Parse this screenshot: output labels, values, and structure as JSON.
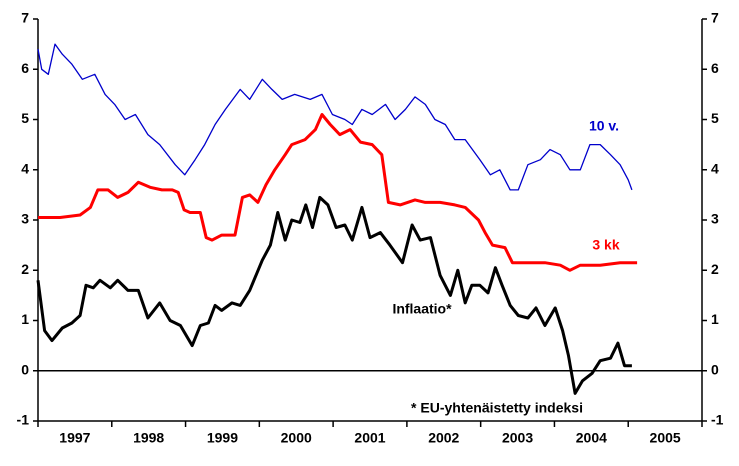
{
  "chart_data": {
    "type": "line",
    "xlim": [
      1997,
      2006
    ],
    "xticks": [
      1997,
      1998,
      1999,
      2000,
      2001,
      2002,
      2003,
      2004,
      2005
    ],
    "ylim": [
      -1,
      7
    ],
    "yticks": [
      -1,
      0,
      1,
      2,
      3,
      4,
      5,
      6,
      7
    ],
    "y2lim": [
      -1,
      7
    ],
    "y2ticks": [
      -1,
      0,
      1,
      2,
      3,
      4,
      5,
      6,
      7
    ],
    "annotations": [
      "* EU-yhtenäistetty indeksi"
    ],
    "series": [
      {
        "name": "10 v.",
        "color": "#0000cc",
        "x": [
          1997.0,
          1997.05,
          1997.14,
          1997.23,
          1997.33,
          1997.46,
          1997.6,
          1997.77,
          1997.91,
          1998.04,
          1998.18,
          1998.32,
          1998.49,
          1998.65,
          1998.86,
          1998.99,
          1999.13,
          1999.26,
          1999.4,
          1999.54,
          1999.74,
          1999.87,
          2000.04,
          2000.17,
          2000.31,
          2000.48,
          2000.69,
          2000.85,
          2000.99,
          2001.16,
          2001.26,
          2001.39,
          2001.53,
          2001.71,
          2001.84,
          2001.98,
          2002.11,
          2002.25,
          2002.38,
          2002.52,
          2002.65,
          2002.79,
          2002.99,
          2003.13,
          2003.26,
          2003.4,
          2003.51,
          2003.64,
          2003.81,
          2003.94,
          2004.08,
          2004.21,
          2004.35,
          2004.48,
          2004.62,
          2004.76,
          2004.89,
          2005.0,
          2005.05
        ],
        "values": [
          6.4,
          6.0,
          5.9,
          6.5,
          6.3,
          6.1,
          5.8,
          5.9,
          5.5,
          5.3,
          5.0,
          5.1,
          4.7,
          4.5,
          4.1,
          3.9,
          4.2,
          4.5,
          4.9,
          5.2,
          5.6,
          5.4,
          5.8,
          5.6,
          5.4,
          5.5,
          5.4,
          5.5,
          5.1,
          5.0,
          4.9,
          5.2,
          5.1,
          5.3,
          5.0,
          5.2,
          5.45,
          5.3,
          5.0,
          4.9,
          4.6,
          4.6,
          4.2,
          3.9,
          4.0,
          3.6,
          3.6,
          4.1,
          4.2,
          4.4,
          4.3,
          4.0,
          4.0,
          4.5,
          4.5,
          4.3,
          4.1,
          3.8,
          3.6
        ]
      },
      {
        "name": "3 kk",
        "color": "#ff0000",
        "x": [
          1997.0,
          1997.3,
          1997.57,
          1997.71,
          1997.81,
          1997.95,
          1998.08,
          1998.22,
          1998.36,
          1998.52,
          1998.68,
          1998.82,
          1998.9,
          1998.98,
          1999.06,
          1999.2,
          1999.28,
          1999.36,
          1999.49,
          1999.67,
          1999.77,
          1999.87,
          1999.98,
          2000.09,
          2000.21,
          2000.35,
          2000.44,
          2000.62,
          2000.76,
          2000.85,
          2000.96,
          2001.09,
          2001.23,
          2001.37,
          2001.53,
          2001.66,
          2001.75,
          2001.91,
          2002.11,
          2002.25,
          2002.45,
          2002.65,
          2002.79,
          2002.97,
          2003.06,
          2003.16,
          2003.33,
          2003.43,
          2003.6,
          2003.87,
          2004.08,
          2004.21,
          2004.35,
          2004.62,
          2004.89,
          2005.12
        ],
        "values": [
          3.05,
          3.05,
          3.1,
          3.25,
          3.6,
          3.6,
          3.45,
          3.55,
          3.75,
          3.65,
          3.6,
          3.6,
          3.55,
          3.2,
          3.15,
          3.15,
          2.65,
          2.6,
          2.7,
          2.7,
          3.45,
          3.5,
          3.35,
          3.7,
          4.0,
          4.3,
          4.5,
          4.6,
          4.8,
          5.1,
          4.9,
          4.7,
          4.8,
          4.55,
          4.5,
          4.3,
          3.35,
          3.3,
          3.4,
          3.35,
          3.35,
          3.3,
          3.25,
          3.0,
          2.75,
          2.5,
          2.45,
          2.15,
          2.15,
          2.15,
          2.1,
          2.0,
          2.1,
          2.1,
          2.15,
          2.15
        ]
      },
      {
        "name": "Inflaatio*",
        "color": "#000000",
        "x": [
          1997.0,
          1997.09,
          1997.19,
          1997.33,
          1997.46,
          1997.57,
          1997.65,
          1997.75,
          1997.84,
          1997.98,
          1998.08,
          1998.22,
          1998.36,
          1998.49,
          1998.65,
          1998.79,
          1998.93,
          1999.09,
          1999.2,
          1999.31,
          1999.4,
          1999.49,
          1999.63,
          1999.74,
          1999.87,
          2000.04,
          2000.15,
          2000.25,
          2000.35,
          2000.44,
          2000.55,
          2000.63,
          2000.72,
          2000.82,
          2000.93,
          2001.04,
          2001.16,
          2001.26,
          2001.39,
          2001.5,
          2001.64,
          2001.77,
          2001.94,
          2002.07,
          2002.18,
          2002.32,
          2002.45,
          2002.59,
          2002.69,
          2002.79,
          2002.88,
          2002.99,
          2003.1,
          2003.2,
          2003.29,
          2003.4,
          2003.51,
          2003.64,
          2003.75,
          2003.87,
          2004.01,
          2004.11,
          2004.19,
          2004.28,
          2004.38,
          2004.51,
          2004.62,
          2004.76,
          2004.86,
          2004.95,
          2005.05
        ],
        "values": [
          1.8,
          0.8,
          0.6,
          0.85,
          0.95,
          1.1,
          1.7,
          1.65,
          1.8,
          1.65,
          1.8,
          1.6,
          1.6,
          1.05,
          1.35,
          1.0,
          0.9,
          0.5,
          0.9,
          0.95,
          1.3,
          1.2,
          1.35,
          1.3,
          1.6,
          2.2,
          2.5,
          3.15,
          2.6,
          3.0,
          2.95,
          3.3,
          2.85,
          3.45,
          3.3,
          2.85,
          2.9,
          2.6,
          3.25,
          2.65,
          2.75,
          2.5,
          2.15,
          2.9,
          2.6,
          2.65,
          1.9,
          1.5,
          2.0,
          1.35,
          1.7,
          1.7,
          1.55,
          2.05,
          1.7,
          1.3,
          1.1,
          1.05,
          1.25,
          0.9,
          1.25,
          0.8,
          0.3,
          -0.45,
          -0.2,
          -0.05,
          0.2,
          0.25,
          0.55,
          0.1,
          0.1
        ]
      }
    ]
  }
}
